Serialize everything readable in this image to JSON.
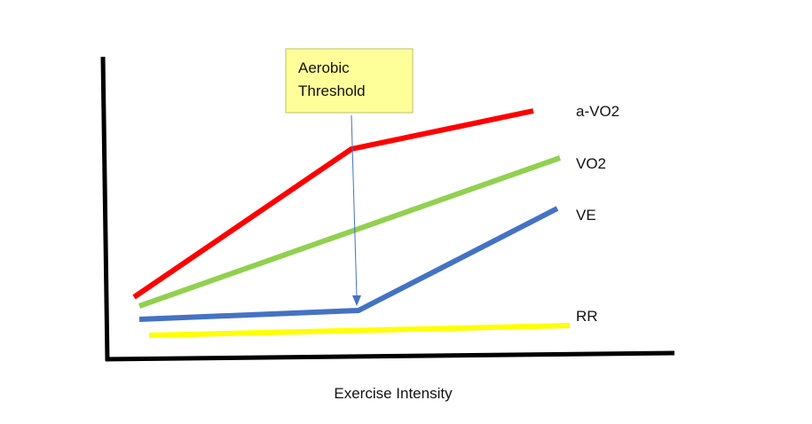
{
  "diagram": {
    "xlabel": "Exercise Intensity",
    "annotation": {
      "line1": "Aerobic",
      "line2": "Threshold",
      "fill": "#FFFF99",
      "border": "#BFBF60"
    },
    "series": [
      {
        "key": "avo2",
        "name": "a-VO2",
        "color": "#FF0000"
      },
      {
        "key": "vo2",
        "name": "VO2",
        "color": "#92D050"
      },
      {
        "key": "ve",
        "name": "VE",
        "color": "#4472C4"
      },
      {
        "key": "rr",
        "name": "RR",
        "color": "#FFFF00"
      }
    ],
    "axis_color": "#000000",
    "arrow_color": "#4472C4"
  }
}
